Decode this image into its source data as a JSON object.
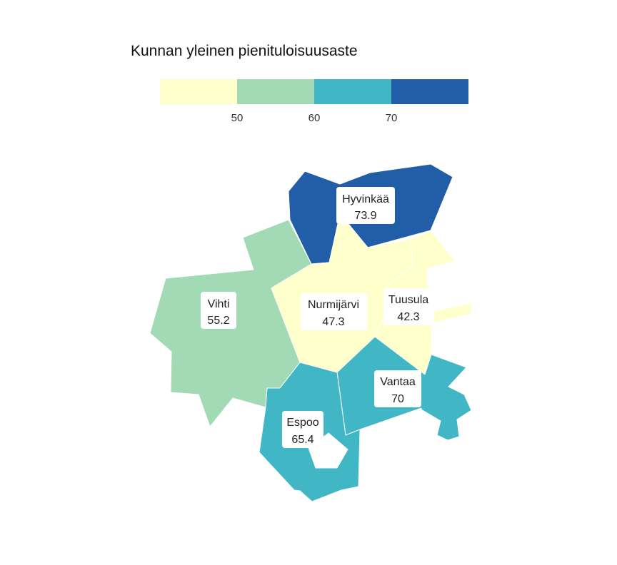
{
  "legend": {
    "title": "Kunnan yleinen pienituloisuusaste",
    "breaks": [
      50,
      60,
      70
    ],
    "tick_labels": [
      "50",
      "60",
      "70"
    ],
    "colors": [
      "#ffffcc",
      "#a1dab4",
      "#41b6c4",
      "#225ea8"
    ]
  },
  "regions": [
    {
      "name": "Hyvinkää",
      "value": 73.9,
      "value_label": "73.9",
      "color": "#225ea8"
    },
    {
      "name": "Vihti",
      "value": 55.2,
      "value_label": "55.2",
      "color": "#a1dab4"
    },
    {
      "name": "Nurmijärvi",
      "value": 47.3,
      "value_label": "47.3",
      "color": "#ffffcc"
    },
    {
      "name": "Tuusula",
      "value": 42.3,
      "value_label": "42.3",
      "color": "#ffffcc"
    },
    {
      "name": "Vantaa",
      "value": 70,
      "value_label": "70",
      "color": "#41b6c4"
    },
    {
      "name": "Espoo",
      "value": 65.4,
      "value_label": "65.4",
      "color": "#41b6c4"
    }
  ]
}
